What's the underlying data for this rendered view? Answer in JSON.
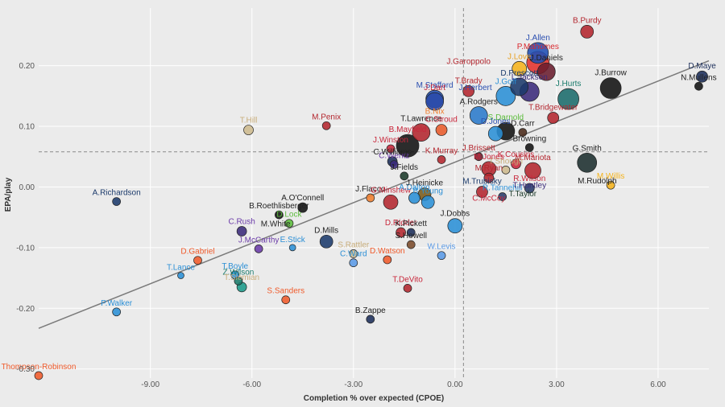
{
  "chart_data": {
    "type": "scatter",
    "title": "",
    "xlabel": "Completion % over expected (CPOE)",
    "ylabel": "EPA/play",
    "xlim": [
      -12.3,
      7.5
    ],
    "ylim": [
      -0.315,
      0.295
    ],
    "x_ticks": [
      -9,
      -6,
      -3,
      0,
      3,
      6
    ],
    "x_tick_labels": [
      "-9.00",
      "-6.00",
      "-3.00",
      "0.00",
      "3.00",
      "6.00"
    ],
    "y_ticks": [
      -0.3,
      -0.2,
      -0.1,
      0,
      0.1,
      0.2
    ],
    "y_tick_labels": [
      "-0.30",
      "-0.20",
      "-0.10",
      "0.00",
      "0.10",
      "0.20"
    ],
    "grid": true,
    "reference_lines": {
      "x_mean": 0.25,
      "y_mean": 0.058
    },
    "trend_line": {
      "x": [
        -12.3,
        7.5
      ],
      "y": [
        -0.233,
        0.208
      ]
    },
    "points": [
      {
        "label": "B.Purdy",
        "x": 3.9,
        "y": 0.256,
        "size": 8,
        "color": "#b3262e",
        "label_color": "#b3262e"
      },
      {
        "label": "J.Allen",
        "x": 2.45,
        "y": 0.221,
        "size": 13,
        "color": "#1f4fb4",
        "label_color": "#2b4fb0"
      },
      {
        "label": "P.Mahomes",
        "x": 2.45,
        "y": 0.205,
        "size": 14,
        "color": "#e3312c",
        "label_color": "#d8282e"
      },
      {
        "label": "J.Garoppolo",
        "x": 0.4,
        "y": 0.2,
        "size": 0,
        "color": "#b3262e",
        "label_color": "#b3262e"
      },
      {
        "label": "J.Love",
        "x": 1.9,
        "y": 0.195,
        "size": 9,
        "color": "#f5b31b",
        "label_color": "#e8a020"
      },
      {
        "label": "J.Daniels",
        "x": 2.7,
        "y": 0.19,
        "size": 11,
        "color": "#6a1c2e",
        "label_color": "#222222"
      },
      {
        "label": "D.Prescott",
        "x": 1.9,
        "y": 0.165,
        "size": 11,
        "color": "#1b3a6b",
        "label_color": "#1b3a6b"
      },
      {
        "label": "J.Burrow",
        "x": 4.6,
        "y": 0.163,
        "size": 13,
        "color": "#111111",
        "label_color": "#222222"
      },
      {
        "label": "D.Maye",
        "x": 7.3,
        "y": 0.182,
        "size": 7,
        "color": "#1b2e5a",
        "label_color": "#1b2e5a"
      },
      {
        "label": "N.Mullens",
        "x": 7.2,
        "y": 0.166,
        "size": 5,
        "color": "#111111",
        "label_color": "#222222"
      },
      {
        "label": "T.Brady",
        "x": 0.4,
        "y": 0.158,
        "size": 7,
        "color": "#b3262e",
        "label_color": "#b3262e"
      },
      {
        "label": "M.Stafford",
        "x": -0.6,
        "y": 0.145,
        "size": 11,
        "color": "#1f4fb4",
        "label_color": "#2b4fb0"
      },
      {
        "label": "J.Goff",
        "x": 1.5,
        "y": 0.15,
        "size": 12,
        "color": "#2a8fd6",
        "label_color": "#2a8fd6"
      },
      {
        "label": "L.Jackson",
        "x": 2.2,
        "y": 0.157,
        "size": 12,
        "color": "#3a2a7a",
        "label_color": "#3a2a7a"
      },
      {
        "label": "J.Hurts",
        "x": 3.35,
        "y": 0.145,
        "size": 13,
        "color": "#1a6b6b",
        "label_color": "#1a7b6b"
      },
      {
        "label": "J.Dart",
        "x": -0.6,
        "y": 0.141,
        "size": 11,
        "color": "#2a4aa8",
        "label_color": "#c8263a"
      },
      {
        "label": "A.Rodgers",
        "x": 0.7,
        "y": 0.118,
        "size": 11,
        "color": "#2a7acb",
        "label_color": "#222222"
      },
      {
        "label": "B.Nix",
        "x": -0.6,
        "y": 0.118,
        "size": 0,
        "color": "#f08030",
        "label_color": "#f08030"
      },
      {
        "label": "T.Bridgewater",
        "x": 2.9,
        "y": 0.114,
        "size": 7,
        "color": "#b3262e",
        "label_color": "#b3262e"
      },
      {
        "label": "T.Hill",
        "x": -6.1,
        "y": 0.094,
        "size": 6,
        "color": "#cdb98d",
        "label_color": "#c8ad7a"
      },
      {
        "label": "M.Penix",
        "x": -3.8,
        "y": 0.101,
        "size": 5,
        "color": "#b3262e",
        "label_color": "#b3262e"
      },
      {
        "label": "T.Lawrence",
        "x": -1.0,
        "y": 0.09,
        "size": 11,
        "color": "#b3262e",
        "label_color": "#222222"
      },
      {
        "label": "C.Stroud",
        "x": -0.4,
        "y": 0.094,
        "size": 7,
        "color": "#e85a2a",
        "label_color": "#c8263a"
      },
      {
        "label": "S.Darnold",
        "x": 1.5,
        "y": 0.092,
        "size": 11,
        "color": "#111111",
        "label_color": "#5bbc3b"
      },
      {
        "label": "D.Carr",
        "x": 2.0,
        "y": 0.09,
        "size": 5,
        "color": "#4a2a1a",
        "label_color": "#222222"
      },
      {
        "label": "D.Jones",
        "x": 1.2,
        "y": 0.088,
        "size": 9,
        "color": "#2a8fd6",
        "label_color": "#2b4fb0"
      },
      {
        "label": "J.Winston",
        "x": -1.9,
        "y": 0.063,
        "size": 5,
        "color": "#c8263a",
        "label_color": "#c8263a"
      },
      {
        "label": "B.Mayfield",
        "x": -1.4,
        "y": 0.068,
        "size": 14,
        "color": "#111111",
        "label_color": "#c8263a"
      },
      {
        "label": "C.Wentz",
        "x": -1.8,
        "y": 0.037,
        "size": 5,
        "color": "#3a2a7a",
        "label_color": "#6a3aa8"
      },
      {
        "label": "C.Williams",
        "x": -1.85,
        "y": 0.042,
        "size": 6,
        "color": "#1b2e5a",
        "label_color": "#222222"
      },
      {
        "label": "Browning",
        "x": 2.2,
        "y": 0.065,
        "size": 5,
        "color": "#111111",
        "label_color": "#222222"
      },
      {
        "label": "G.Smith",
        "x": 3.9,
        "y": 0.04,
        "size": 12,
        "color": "#1b2e2e",
        "label_color": "#222222"
      },
      {
        "label": "K.Murray",
        "x": -0.4,
        "y": 0.045,
        "size": 5,
        "color": "#b3262e",
        "label_color": "#b3262e"
      },
      {
        "label": "J.Brissett",
        "x": 0.7,
        "y": 0.05,
        "size": 5,
        "color": "#7a1a2a",
        "label_color": "#b3262e"
      },
      {
        "label": "K.Cousins",
        "x": 1.8,
        "y": 0.038,
        "size": 6,
        "color": "#c8263a",
        "label_color": "#c8263a"
      },
      {
        "label": "T.Shough",
        "x": 1.5,
        "y": 0.028,
        "size": 5,
        "color": "#cdb98d",
        "label_color": "#c8ad7a"
      },
      {
        "label": "M.Mariota",
        "x": 2.3,
        "y": 0.027,
        "size": 10,
        "color": "#b3262e",
        "label_color": "#b3262e"
      },
      {
        "label": "J.Fields",
        "x": -1.5,
        "y": 0.018,
        "size": 5,
        "color": "#1b3a2a",
        "label_color": "#222222"
      },
      {
        "label": "M.Jones",
        "x": 1.0,
        "y": 0.03,
        "size": 9,
        "color": "#b3262e",
        "label_color": "#c8263a"
      },
      {
        "label": "M.Ryan",
        "x": 1.0,
        "y": 0.015,
        "size": 6,
        "color": "#b3262e",
        "label_color": "#b3262e"
      },
      {
        "label": "R.Wilson",
        "x": 2.2,
        "y": -0.002,
        "size": 6,
        "color": "#2a3a6a",
        "label_color": "#c8263a"
      },
      {
        "label": "M.Rudolph",
        "x": 4.2,
        "y": 0.003,
        "size": 0,
        "color": "#111111",
        "label_color": "#222222"
      },
      {
        "label": "M.Willis",
        "x": 4.6,
        "y": 0.003,
        "size": 5,
        "color": "#f5b31b",
        "label_color": "#f5b31b"
      },
      {
        "label": "A.Richardson",
        "x": -10.0,
        "y": -0.024,
        "size": 5,
        "color": "#1b3a6b",
        "label_color": "#1b3a6b"
      },
      {
        "label": "A.O'Connell",
        "x": -4.5,
        "y": -0.034,
        "size": 6,
        "color": "#111111",
        "label_color": "#222222"
      },
      {
        "label": "J.Flacco",
        "x": -2.5,
        "y": -0.018,
        "size": 5,
        "color": "#f08030",
        "label_color": "#222222"
      },
      {
        "label": "B.Roethlisberger",
        "x": -5.2,
        "y": -0.046,
        "size": 5,
        "color": "#111111",
        "label_color": "#222222"
      },
      {
        "label": "D.Lock",
        "x": -4.9,
        "y": -0.06,
        "size": 5,
        "color": "#5bbc3b",
        "label_color": "#5bbc3b"
      },
      {
        "label": "C.Rush",
        "x": -6.3,
        "y": -0.073,
        "size": 6,
        "color": "#3a2a7a",
        "label_color": "#6a3aa8"
      },
      {
        "label": "M.White",
        "x": -5.3,
        "y": -0.068,
        "size": 0,
        "color": "#1b3a2a",
        "label_color": "#222222"
      },
      {
        "label": "D.Mills",
        "x": -3.8,
        "y": -0.09,
        "size": 8,
        "color": "#1b3a6b",
        "label_color": "#222222"
      },
      {
        "label": "G.Minshew",
        "x": -1.9,
        "y": -0.025,
        "size": 9,
        "color": "#b3262e",
        "label_color": "#c8263a"
      },
      {
        "label": "S.Rattler",
        "x": -3.0,
        "y": -0.11,
        "size": 5,
        "color": "#cdb98d",
        "label_color": "#c8ad7a"
      },
      {
        "label": "J.Herbert",
        "x": 0.6,
        "y": 0.157,
        "size": 0,
        "color": "#2a8fd6",
        "label_color": "#2b4fb0"
      },
      {
        "label": "A.Dalton",
        "x": -1.2,
        "y": -0.018,
        "size": 7,
        "color": "#2a8fd6",
        "label_color": "#2b8fd6"
      },
      {
        "label": "J.Heinicke",
        "x": -0.9,
        "y": -0.012,
        "size": 8,
        "color": "#7a5a1a",
        "label_color": "#222222"
      },
      {
        "label": "B.Young",
        "x": -0.8,
        "y": -0.025,
        "size": 8,
        "color": "#2a8fd6",
        "label_color": "#2b8fd6"
      },
      {
        "label": "M.Trubisky",
        "x": 0.8,
        "y": -0.008,
        "size": 7,
        "color": "#b3262e",
        "label_color": "#1b3a6b"
      },
      {
        "label": "R.Tannehill",
        "x": 1.4,
        "y": -0.016,
        "size": 5,
        "color": "#2a3a6a",
        "label_color": "#2b8fd6"
      },
      {
        "label": "T.Huntley",
        "x": 2.2,
        "y": -0.004,
        "size": 0,
        "color": "#3a2a7a",
        "label_color": "#3a2a7a"
      },
      {
        "label": "T.Taylor",
        "x": 2.0,
        "y": -0.018,
        "size": 0,
        "color": "#1b3a2a",
        "label_color": "#1b3a2a"
      },
      {
        "label": "C.McCoy",
        "x": 1.0,
        "y": -0.025,
        "size": 0,
        "color": "#b3262e",
        "label_color": "#c8263a"
      },
      {
        "label": "J.Dobbs",
        "x": 0.0,
        "y": -0.064,
        "size": 9,
        "color": "#2a8fd6",
        "label_color": "#222222"
      },
      {
        "label": "D.Ridder",
        "x": -1.6,
        "y": -0.075,
        "size": 6,
        "color": "#b3262e",
        "label_color": "#c8263a"
      },
      {
        "label": "K.Pickett",
        "x": -1.3,
        "y": -0.075,
        "size": 5,
        "color": "#1b2e5a",
        "label_color": "#222222"
      },
      {
        "label": "S.Howell",
        "x": -1.3,
        "y": -0.095,
        "size": 5,
        "color": "#7a4a2a",
        "label_color": "#222222"
      },
      {
        "label": "D.Watson",
        "x": -2.0,
        "y": -0.12,
        "size": 5,
        "color": "#f05a2a",
        "label_color": "#f05a2a"
      },
      {
        "label": "W.Levis",
        "x": -0.4,
        "y": -0.113,
        "size": 5,
        "color": "#5a9ae6",
        "label_color": "#5a9ae6"
      },
      {
        "label": "J.McCarthy",
        "x": -5.8,
        "y": -0.102,
        "size": 5,
        "color": "#6a3aa8",
        "label_color": "#6a3aa8"
      },
      {
        "label": "E.Stick",
        "x": -4.8,
        "y": -0.1,
        "size": 4,
        "color": "#2a8fd6",
        "label_color": "#2b8fd6"
      },
      {
        "label": "C.Ward",
        "x": -3.0,
        "y": -0.125,
        "size": 5,
        "color": "#5a9ae6",
        "label_color": "#2b8fd6"
      },
      {
        "label": "D.Gabriel",
        "x": -7.6,
        "y": -0.121,
        "size": 5,
        "color": "#f05a2a",
        "label_color": "#f05a2a"
      },
      {
        "label": "T.Lance",
        "x": -8.1,
        "y": -0.146,
        "size": 4,
        "color": "#2a8fd6",
        "label_color": "#2b8fd6"
      },
      {
        "label": "T.Boyle",
        "x": -6.5,
        "y": -0.145,
        "size": 5,
        "color": "#2a8fd6",
        "label_color": "#2b8fd6"
      },
      {
        "label": "Z.Wilson",
        "x": -6.4,
        "y": -0.155,
        "size": 5,
        "color": "#1a7b6b",
        "label_color": "#1a7b6b"
      },
      {
        "label": "T.Siemian",
        "x": -6.3,
        "y": -0.165,
        "size": 6,
        "color": "#1a9a8a",
        "label_color": "#c8ad7a"
      },
      {
        "label": "S.Sanders",
        "x": -5.0,
        "y": -0.186,
        "size": 5,
        "color": "#f05a2a",
        "label_color": "#f05a2a"
      },
      {
        "label": "T.DeVito",
        "x": -1.4,
        "y": -0.167,
        "size": 5,
        "color": "#b3262e",
        "label_color": "#c8263a"
      },
      {
        "label": "P.Walker",
        "x": -10.0,
        "y": -0.206,
        "size": 5,
        "color": "#2a8fd6",
        "label_color": "#2b8fd6"
      },
      {
        "label": "B.Zappe",
        "x": -2.5,
        "y": -0.218,
        "size": 5,
        "color": "#1b2e5a",
        "label_color": "#222222"
      },
      {
        "label": "Thompson-Robinson",
        "x": -12.3,
        "y": -0.311,
        "size": 5,
        "color": "#f05a2a",
        "label_color": "#f05a2a"
      }
    ]
  }
}
